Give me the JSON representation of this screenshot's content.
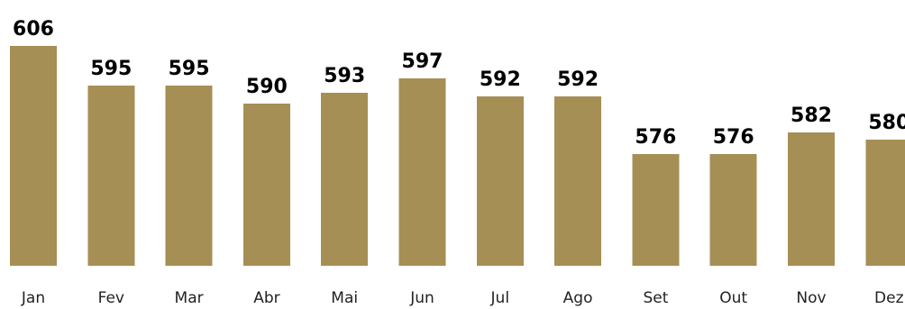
{
  "chart_data": {
    "type": "bar",
    "categories": [
      "Jan",
      "Fev",
      "Mar",
      "Abr",
      "Mai",
      "Jun",
      "Jul",
      "Ago",
      "Set",
      "Out",
      "Nov",
      "Dez"
    ],
    "values": [
      606,
      595,
      595,
      590,
      593,
      597,
      592,
      592,
      576,
      576,
      582,
      580
    ],
    "value_labels": [
      "606",
      "595",
      "595",
      "590",
      "593",
      "597",
      "592",
      "592",
      "576",
      "576",
      "582",
      "580"
    ],
    "title": "",
    "xlabel": "",
    "ylabel": "",
    "ylim": [
      545,
      606
    ],
    "grid": false,
    "legend": "none",
    "colors": {
      "bar": "#A68F55",
      "value_label": "#000000",
      "category_label": "#222222"
    }
  }
}
